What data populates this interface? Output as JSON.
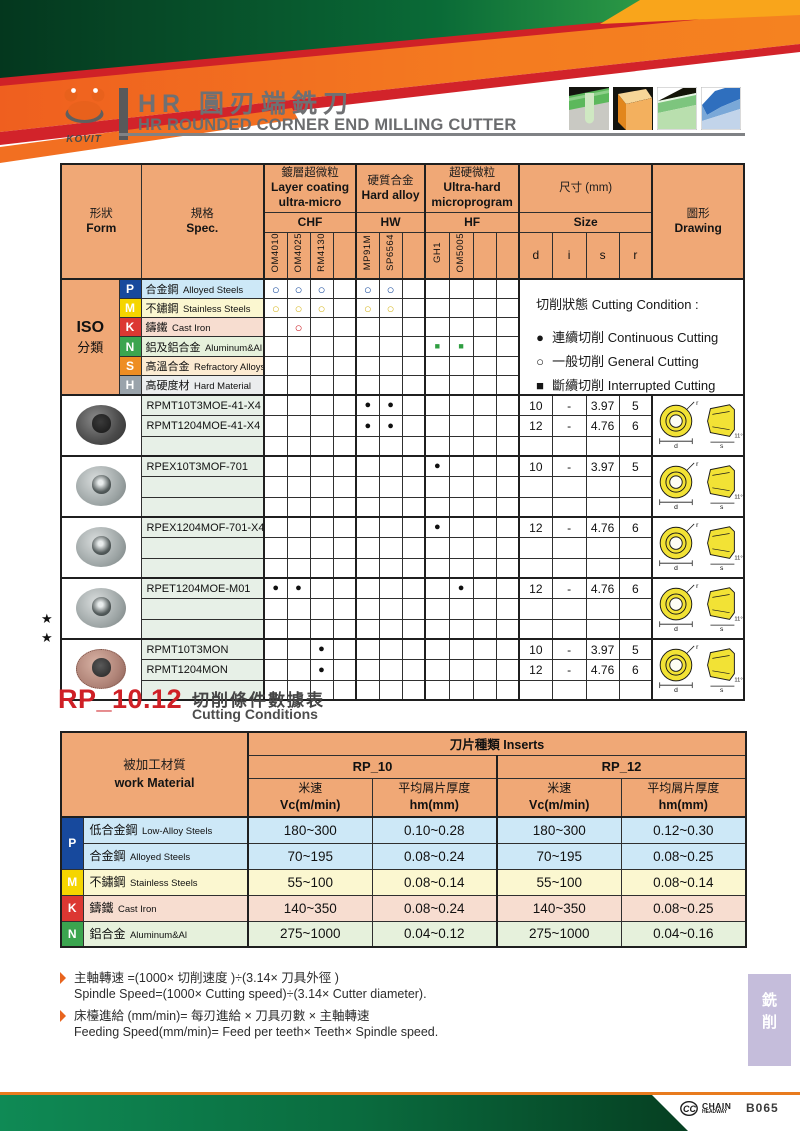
{
  "header": {
    "logo_text": "KOVIT",
    "title_zh": "HR 圓刃端銑刀",
    "title_en": "HR ROUNDED CORNER END MILLING CUTTER"
  },
  "iso": {
    "label_line1": "ISO",
    "label_line2": "分類",
    "rows": [
      {
        "code": "P",
        "label_zh": "合金鋼",
        "label_en": "Alloyed Steels",
        "marks": [
          "○",
          "○",
          "○",
          "",
          "○",
          "○",
          "",
          "",
          "",
          "",
          ""
        ]
      },
      {
        "code": "M",
        "label_zh": "不鏽鋼",
        "label_en": "Stainless Steels",
        "marks": [
          "○",
          "○",
          "○",
          "",
          "○",
          "○",
          "",
          "",
          "",
          "",
          ""
        ]
      },
      {
        "code": "K",
        "label_zh": "鑄鐵",
        "label_en": "Cast Iron",
        "marks": [
          "",
          "○",
          "",
          "",
          "",
          "",
          "",
          "",
          "",
          "",
          ""
        ]
      },
      {
        "code": "N",
        "label_zh": "鋁及鋁合金",
        "label_en": "Aluminum&Al",
        "marks": [
          "",
          "",
          "",
          "",
          "",
          "",
          "",
          "■",
          "■",
          "",
          ""
        ]
      },
      {
        "code": "S",
        "label_zh": "高溫合金",
        "label_en": "Refractory Alloys",
        "marks": [
          "",
          "",
          "",
          "",
          "",
          "",
          "",
          "",
          "",
          "",
          ""
        ]
      },
      {
        "code": "H",
        "label_zh": "高硬度材",
        "label_en": "Hard Material",
        "marks": [
          "",
          "",
          "",
          "",
          "",
          "",
          "",
          "",
          "",
          "",
          ""
        ]
      }
    ],
    "legend": {
      "title": "切削狀態 Cutting Condition :",
      "items": [
        {
          "symbol": "●",
          "text": "連續切削 Continuous Cutting"
        },
        {
          "symbol": "○",
          "text": "一般切削 General Cutting"
        },
        {
          "symbol": "■",
          "text": "斷續切削 Interrupted Cutting"
        }
      ]
    }
  },
  "spec_table": {
    "form_zh": "形狀",
    "form_en": "Form",
    "spec_zh": "規格",
    "spec_en": "Spec.",
    "grp1_zh": "鍍層超微粒",
    "grp1_en1": "Layer coating",
    "grp1_en2": "ultra-micro",
    "grp1_code": "CHF",
    "grp2_zh": "硬質合金",
    "grp2_en1": "Hard alloy",
    "grp2_code": "HW",
    "grp3_zh": "超硬微粒",
    "grp3_en1": "Ultra-hard",
    "grp3_en2": "microprogram",
    "grp3_code": "HF",
    "size_zh": "尺寸 (mm)",
    "size_en": "Size",
    "draw_zh": "圖形",
    "draw_en": "Drawing",
    "cols": {
      "c0": "OM4010",
      "c1": "OM4025",
      "c2": "RM4130",
      "c4": "MP91M",
      "c5": "SP6564",
      "c7": "GH1",
      "c8": "OM5005"
    },
    "size_cols": {
      "d": "d",
      "i": "i",
      "s": "s",
      "r": "r"
    },
    "star": "★",
    "drawing_labels": {
      "d": "d",
      "r": "r",
      "s": "s",
      "angle": "11°"
    },
    "groups": [
      {
        "rows": [
          {
            "spec": "RPMT10T3MOE-41-X4",
            "marks": [
              "",
              "",
              "",
              "",
              "●",
              "●",
              "",
              "",
              "",
              "",
              ""
            ],
            "d": "10",
            "i": "-",
            "s": "3.97",
            "r": "5"
          },
          {
            "spec": "RPMT1204MOE-41-X4",
            "marks": [
              "",
              "",
              "",
              "",
              "●",
              "●",
              "",
              "",
              "",
              "",
              ""
            ],
            "d": "12",
            "i": "-",
            "s": "4.76",
            "r": "6"
          },
          {
            "spec": "",
            "marks": [
              "",
              "",
              "",
              "",
              "",
              "",
              "",
              "",
              "",
              "",
              ""
            ],
            "d": "",
            "i": "",
            "s": "",
            "r": ""
          }
        ]
      },
      {
        "rows": [
          {
            "spec": "RPEX10T3MOF-701",
            "marks": [
              "",
              "",
              "",
              "",
              "",
              "",
              "",
              "●",
              "",
              "",
              ""
            ],
            "d": "10",
            "i": "-",
            "s": "3.97",
            "r": "5"
          },
          {
            "spec": "",
            "marks": [
              "",
              "",
              "",
              "",
              "",
              "",
              "",
              "",
              "",
              "",
              ""
            ],
            "d": "",
            "i": "",
            "s": "",
            "r": ""
          },
          {
            "spec": "",
            "marks": [
              "",
              "",
              "",
              "",
              "",
              "",
              "",
              "",
              "",
              "",
              ""
            ],
            "d": "",
            "i": "",
            "s": "",
            "r": ""
          }
        ]
      },
      {
        "rows": [
          {
            "spec": "RPEX1204MOF-701-X4",
            "marks": [
              "",
              "",
              "",
              "",
              "",
              "",
              "",
              "●",
              "",
              "",
              ""
            ],
            "d": "12",
            "i": "-",
            "s": "4.76",
            "r": "6"
          },
          {
            "spec": "",
            "marks": [
              "",
              "",
              "",
              "",
              "",
              "",
              "",
              "",
              "",
              "",
              ""
            ],
            "d": "",
            "i": "",
            "s": "",
            "r": ""
          },
          {
            "spec": "",
            "marks": [
              "",
              "",
              "",
              "",
              "",
              "",
              "",
              "",
              "",
              "",
              ""
            ],
            "d": "",
            "i": "",
            "s": "",
            "r": ""
          }
        ]
      },
      {
        "rows": [
          {
            "spec": "RPET1204MOE-M01",
            "marks": [
              "●",
              "●",
              "",
              "",
              "",
              "",
              "",
              "",
              "●",
              "",
              ""
            ],
            "d": "12",
            "i": "-",
            "s": "4.76",
            "r": "6"
          },
          {
            "spec": "",
            "marks": [
              "",
              "",
              "",
              "",
              "",
              "",
              "",
              "",
              "",
              "",
              ""
            ],
            "d": "",
            "i": "",
            "s": "",
            "r": ""
          },
          {
            "spec": "",
            "marks": [
              "",
              "",
              "",
              "",
              "",
              "",
              "",
              "",
              "",
              "",
              ""
            ],
            "d": "",
            "i": "",
            "s": "",
            "r": ""
          }
        ]
      },
      {
        "rows": [
          {
            "spec": "RPMT10T3MON",
            "marks": [
              "",
              "",
              "●",
              "",
              "",
              "",
              "",
              "",
              "",
              "",
              ""
            ],
            "d": "10",
            "i": "-",
            "s": "3.97",
            "r": "5"
          },
          {
            "spec": "RPMT1204MON",
            "marks": [
              "",
              "",
              "●",
              "",
              "",
              "",
              "",
              "",
              "",
              "",
              ""
            ],
            "d": "12",
            "i": "-",
            "s": "4.76",
            "r": "6"
          },
          {
            "spec": "",
            "marks": [
              "",
              "",
              "",
              "",
              "",
              "",
              "",
              "",
              "",
              "",
              ""
            ],
            "d": "",
            "i": "",
            "s": "",
            "r": ""
          }
        ]
      }
    ]
  },
  "cutting": {
    "model": "RP_10.12",
    "title_zh": "切削條件數據表",
    "title_en": "Cutting Conditions",
    "material_zh": "被加工材質",
    "material_en": "work Material",
    "inserts_header": "刀片種類 Inserts",
    "rp10": "RP_10",
    "rp12": "RP_12",
    "speed_zh": "米速",
    "speed_en": "Vc(m/min)",
    "chip_zh": "平均屑片厚度",
    "chip_en": "hm(mm)",
    "rows": [
      {
        "code": "P",
        "label_zh": "低合金鋼",
        "label_en": "Low-Alloy Steels",
        "vc10": "180~300",
        "hm10": "0.10~0.28",
        "vc12": "180~300",
        "hm12": "0.12~0.30"
      },
      {
        "code": "",
        "label_zh": "合金鋼",
        "label_en": "Alloyed Steels",
        "vc10": "70~195",
        "hm10": "0.08~0.24",
        "vc12": "70~195",
        "hm12": "0.08~0.25"
      },
      {
        "code": "M",
        "label_zh": "不鏽鋼",
        "label_en": "Stainless Steels",
        "vc10": "55~100",
        "hm10": "0.08~0.14",
        "vc12": "55~100",
        "hm12": "0.08~0.14"
      },
      {
        "code": "K",
        "label_zh": "鑄鐵",
        "label_en": "Cast Iron",
        "vc10": "140~350",
        "hm10": "0.08~0.24",
        "vc12": "140~350",
        "hm12": "0.08~0.25"
      },
      {
        "code": "N",
        "label_zh": "鋁合金",
        "label_en": "Aluminum&Al",
        "vc10": "275~1000",
        "hm10": "0.04~0.12",
        "vc12": "275~1000",
        "hm12": "0.04~0.16"
      }
    ]
  },
  "notes": [
    {
      "zh": "主軸轉速 =(1000× 切削速度 )÷(3.14× 刀具外徑 )",
      "en": "Spindle Speed=(1000× Cutting speed)÷(3.14× Cutter diameter)."
    },
    {
      "zh": "床檯進給 (mm/min)= 每刃進給 × 刀具刃數 × 主軸轉速",
      "en": "Feeding Speed(mm/min)= Feed per teeth× Teeth× Spindle speed."
    }
  ],
  "side_tab": {
    "char1": "銑",
    "char2": "削"
  },
  "footer": {
    "brand_line1": "CHAIN",
    "brand_line2": "HEADWAY",
    "page": "B065"
  }
}
